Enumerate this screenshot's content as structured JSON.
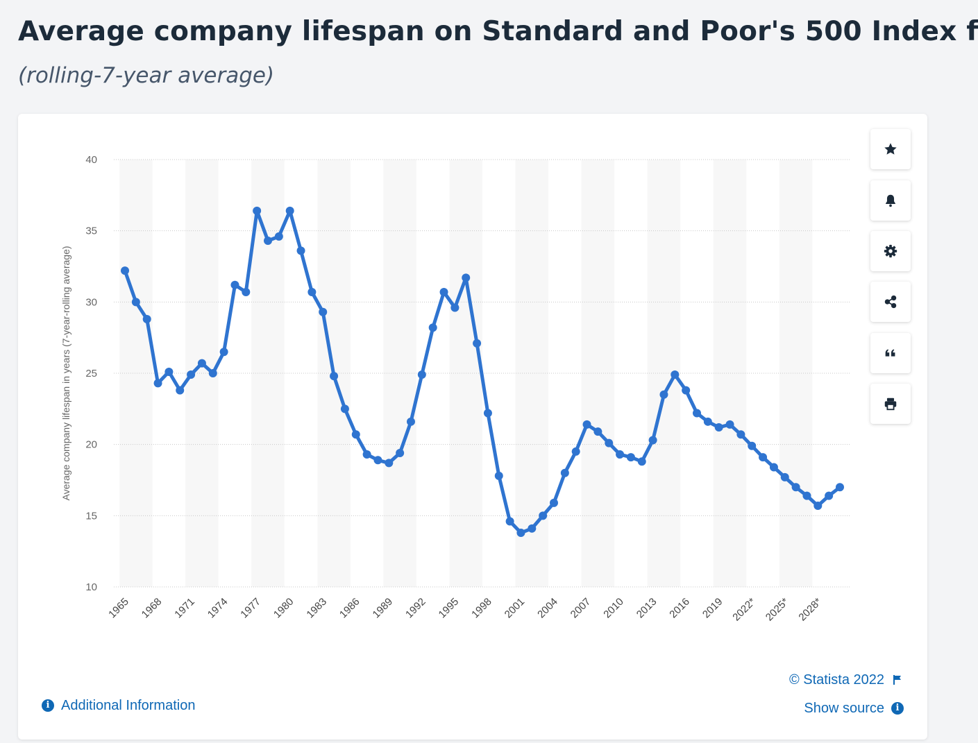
{
  "header": {
    "title": "Average company lifespan on Standard and Poor's 500 Index f",
    "subtitle": "(rolling-7-year average)"
  },
  "toolbar": {
    "icons": [
      "star-icon",
      "bell-icon",
      "gear-icon",
      "share-icon",
      "quote-icon",
      "print-icon"
    ]
  },
  "footer": {
    "copyright": "© Statista 2022",
    "show_source": "Show source",
    "additional_info": "Additional Information"
  },
  "colors": {
    "series": "#2f74d0",
    "accent": "#0f68b5",
    "title": "#1c2b3a",
    "band": "#f7f7f7",
    "grid": "#c8c8c8"
  },
  "chart_data": {
    "type": "line",
    "title": "Average company lifespan on Standard and Poor's 500 Index f",
    "subtitle": "(rolling-7-year average)",
    "xlabel": "",
    "ylabel": "Average company lifespan in years (7-year-rolling average)",
    "ylim": [
      10,
      40
    ],
    "yticks": [
      10,
      15,
      20,
      25,
      30,
      35,
      40
    ],
    "x_tick_labels": [
      "1965",
      "1968",
      "1971",
      "1974",
      "1977",
      "1980",
      "1983",
      "1986",
      "1989",
      "1992",
      "1995",
      "1998",
      "2001",
      "2004",
      "2007",
      "2010",
      "2013",
      "2016",
      "2019",
      "2022*",
      "2025*",
      "2028*"
    ],
    "x": [
      1965,
      1966,
      1967,
      1968,
      1969,
      1970,
      1971,
      1972,
      1973,
      1974,
      1975,
      1976,
      1977,
      1978,
      1979,
      1980,
      1981,
      1982,
      1983,
      1984,
      1985,
      1986,
      1987,
      1988,
      1989,
      1990,
      1991,
      1992,
      1993,
      1994,
      1995,
      1996,
      1997,
      1998,
      1999,
      2000,
      2001,
      2002,
      2003,
      2004,
      2005,
      2006,
      2007,
      2008,
      2009,
      2010,
      2011,
      2012,
      2013,
      2014,
      2015,
      2016,
      2017,
      2018,
      2019,
      2020,
      2021,
      2022,
      2023,
      2024,
      2025,
      2026,
      2027,
      2028,
      2029,
      2030
    ],
    "series": [
      {
        "values": [
          32.2,
          30.0,
          28.8,
          24.3,
          25.1,
          23.8,
          24.9,
          25.7,
          25.0,
          26.5,
          31.2,
          30.7,
          36.4,
          34.3,
          34.6,
          36.4,
          33.6,
          30.7,
          29.3,
          24.8,
          22.5,
          20.7,
          19.3,
          18.9,
          18.7,
          19.4,
          21.6,
          24.9,
          28.2,
          30.7,
          29.6,
          31.7,
          27.1,
          22.2,
          17.8,
          14.6,
          13.8,
          14.1,
          15.0,
          15.9,
          18.0,
          19.5,
          21.4,
          20.9,
          20.1,
          19.3,
          19.1,
          18.8,
          20.3,
          23.5,
          24.9,
          23.8,
          22.2,
          21.6,
          21.2,
          21.4,
          20.7,
          19.9,
          19.1,
          18.4,
          17.7,
          17.0,
          16.4,
          15.7,
          16.4,
          17.0
        ]
      }
    ],
    "grid": true,
    "legend": "none"
  }
}
